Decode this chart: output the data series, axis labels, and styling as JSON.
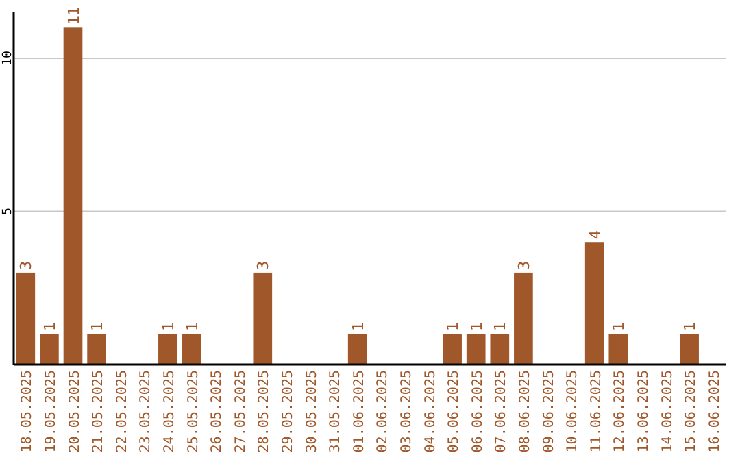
{
  "chart_data": {
    "type": "bar",
    "categories": [
      "18.05.2025",
      "19.05.2025",
      "20.05.2025",
      "21.05.2025",
      "22.05.2025",
      "23.05.2025",
      "24.05.2025",
      "25.05.2025",
      "26.05.2025",
      "27.05.2025",
      "28.05.2025",
      "29.05.2025",
      "30.05.2025",
      "31.05.2025",
      "01.06.2025",
      "02.06.2025",
      "03.06.2025",
      "04.06.2025",
      "05.06.2025",
      "06.06.2025",
      "07.06.2025",
      "08.06.2025",
      "09.06.2025",
      "10.06.2025",
      "11.06.2025",
      "12.06.2025",
      "13.06.2025",
      "14.06.2025",
      "15.06.2025",
      "16.06.2025"
    ],
    "values": [
      3,
      1,
      11,
      1,
      0,
      0,
      1,
      1,
      0,
      0,
      3,
      0,
      0,
      0,
      1,
      0,
      0,
      0,
      1,
      1,
      1,
      3,
      0,
      0,
      4,
      1,
      0,
      0,
      1,
      0
    ],
    "value_labels": [
      "3",
      "1",
      "11",
      "1",
      null,
      null,
      "1",
      "1",
      null,
      null,
      "3",
      null,
      null,
      null,
      "1",
      null,
      null,
      null,
      "1",
      "1",
      "1",
      "3",
      null,
      null,
      "4",
      "1",
      null,
      null,
      "1",
      null
    ],
    "color": "#a0582a",
    "ylim": [
      0,
      11.5
    ],
    "yticks": [
      5,
      10
    ],
    "grid": "y"
  }
}
